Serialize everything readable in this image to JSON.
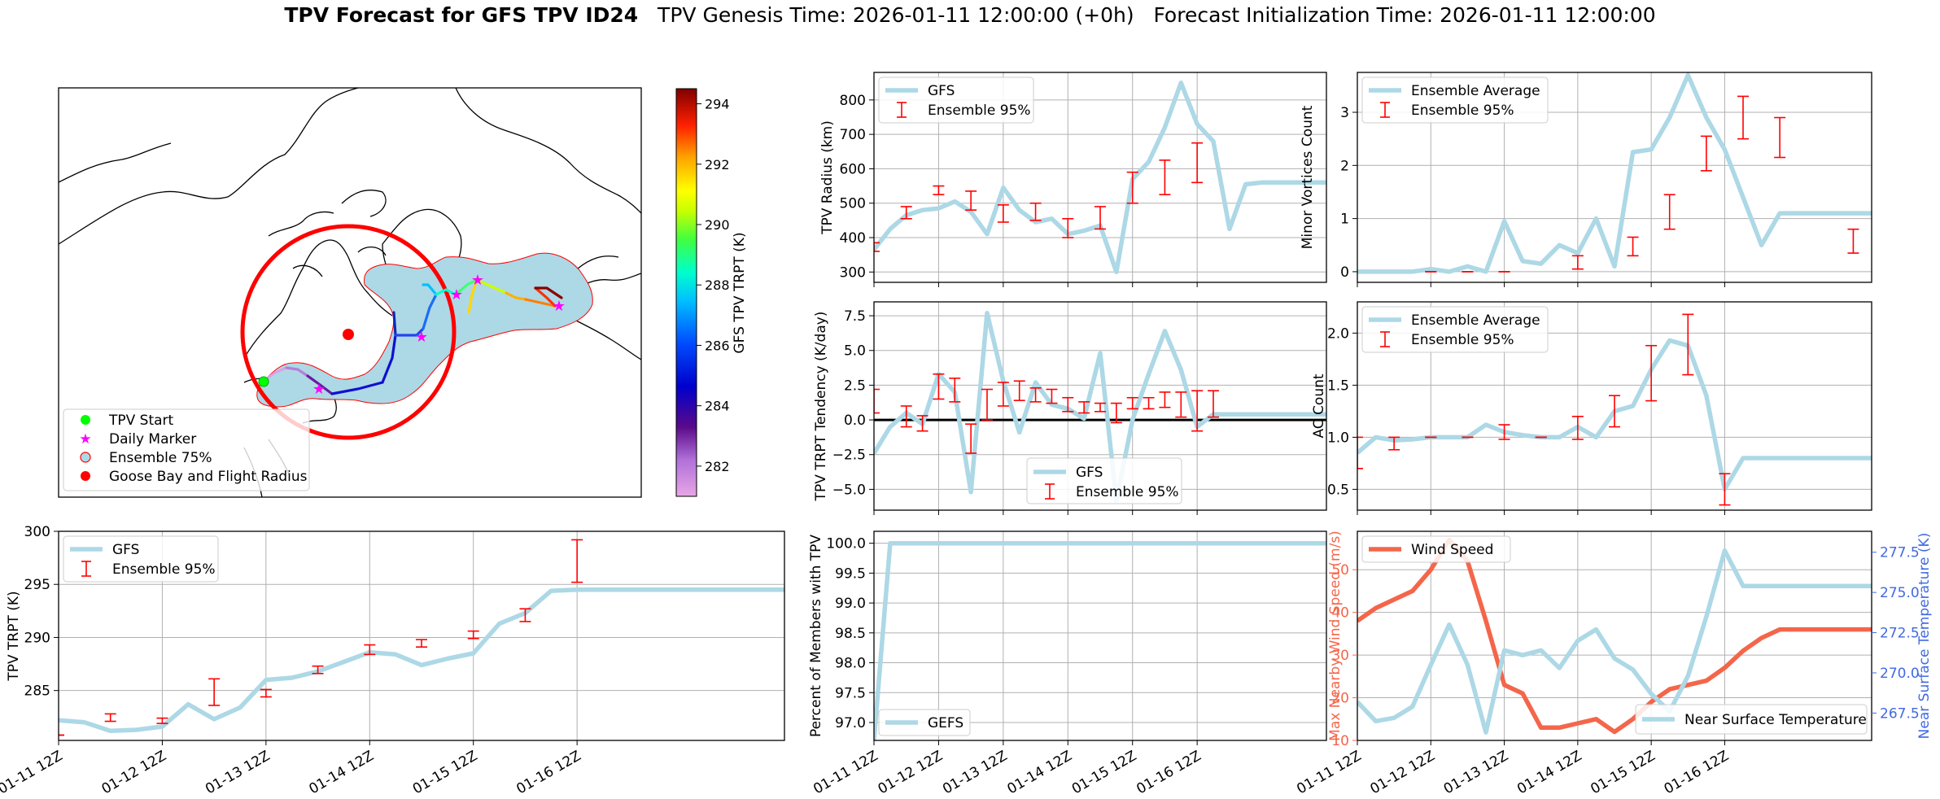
{
  "suptitle": {
    "bold": "TPV Forecast for GFS TPV ID24",
    "genesis": "TPV Genesis Time: 2026-01-11 12:00:00 (+0h)",
    "init": "Forecast Initialization Time: 2026-01-11 12:00:00"
  },
  "date_ticks": [
    "01-11 12Z",
    "01-12 12Z",
    "01-13 12Z",
    "01-14 12Z",
    "01-15 12Z",
    "01-16 12Z"
  ],
  "colors": {
    "gfs_line": "#add8e6",
    "ensemble_err": "#ff0000",
    "wind_line": "#f4664a",
    "temp_axis": "#4169e1",
    "goose_bay": "#ff0000",
    "start": "#00ff00",
    "daily": "#ff00ff"
  },
  "map": {
    "colorbar": {
      "label": "GFS TPV TRPT (K)",
      "min": 281,
      "max": 294.5,
      "ticks": [
        282,
        284,
        286,
        288,
        290,
        292,
        294
      ]
    },
    "legend": [
      "TPV Start",
      "Daily Marker",
      "Ensemble 75%",
      "Goose Bay and Flight Radius"
    ]
  },
  "chart_data": [
    {
      "id": "radius",
      "type": "line",
      "ylabel": "TPV Radius (km)",
      "ylim": [
        270,
        880
      ],
      "yticks": [
        300,
        400,
        500,
        600,
        700,
        800
      ],
      "xlim": [
        0,
        28
      ],
      "legend_labels": [
        "GFS",
        "Ensemble 95%"
      ],
      "series": [
        {
          "name": "GFS",
          "x": [
            0,
            1,
            2,
            3,
            4,
            5,
            6,
            7,
            8,
            9,
            10,
            11,
            12,
            13,
            14,
            15,
            16,
            17,
            18,
            19,
            20,
            21,
            22,
            23,
            24,
            25,
            26,
            27,
            28
          ],
          "values": [
            365,
            425,
            465,
            480,
            485,
            505,
            475,
            410,
            545,
            480,
            445,
            455,
            410,
            420,
            435,
            300,
            570,
            620,
            720,
            850,
            730,
            680,
            425,
            555,
            560,
            560,
            560,
            560,
            560
          ]
        }
      ],
      "errors": [
        {
          "x": 0,
          "lo": 360,
          "hi": 385
        },
        {
          "x": 2,
          "lo": 455,
          "hi": 490
        },
        {
          "x": 4,
          "lo": 525,
          "hi": 550
        },
        {
          "x": 6,
          "lo": 480,
          "hi": 535
        },
        {
          "x": 8,
          "lo": 445,
          "hi": 495
        },
        {
          "x": 10,
          "lo": 450,
          "hi": 500
        },
        {
          "x": 12,
          "lo": 400,
          "hi": 455
        },
        {
          "x": 14,
          "lo": 425,
          "hi": 490
        },
        {
          "x": 16,
          "lo": 500,
          "hi": 590
        },
        {
          "x": 18,
          "lo": 525,
          "hi": 625
        },
        {
          "x": 20,
          "lo": 560,
          "hi": 675
        }
      ]
    },
    {
      "id": "minor",
      "type": "line",
      "ylabel": "Minor Vortices Count",
      "ylim": [
        -0.2,
        3.75
      ],
      "yticks": [
        0,
        1,
        2,
        3
      ],
      "xlim": [
        0,
        28
      ],
      "legend_labels": [
        "Ensemble Average",
        "Ensemble 95%"
      ],
      "series": [
        {
          "name": "Ensemble Average",
          "x": [
            0,
            1,
            2,
            3,
            4,
            5,
            6,
            7,
            8,
            9,
            10,
            11,
            12,
            13,
            14,
            15,
            16,
            17,
            18,
            19,
            20,
            21,
            22,
            23,
            24,
            25,
            26,
            27,
            28
          ],
          "values": [
            0,
            0,
            0,
            0,
            0.05,
            0,
            0.1,
            0,
            0.95,
            0.2,
            0.15,
            0.5,
            0.35,
            1.0,
            0.1,
            2.25,
            2.3,
            2.9,
            3.7,
            2.9,
            2.3,
            1.4,
            0.5,
            1.1,
            1.1,
            1.1,
            1.1,
            1.1,
            1.1
          ]
        }
      ],
      "errors": [
        {
          "x": 4,
          "lo": 0,
          "hi": 0
        },
        {
          "x": 6,
          "lo": 0,
          "hi": 0
        },
        {
          "x": 8,
          "lo": 0,
          "hi": 0
        },
        {
          "x": 12,
          "lo": 0.05,
          "hi": 0.3
        },
        {
          "x": 15,
          "lo": 0.3,
          "hi": 0.65
        },
        {
          "x": 17,
          "lo": 0.8,
          "hi": 1.45
        },
        {
          "x": 19,
          "lo": 1.9,
          "hi": 2.55
        },
        {
          "x": 21,
          "lo": 2.5,
          "hi": 3.3
        },
        {
          "x": 23,
          "lo": 2.15,
          "hi": 2.9
        },
        {
          "x": 27,
          "lo": 0.35,
          "hi": 0.8
        }
      ]
    },
    {
      "id": "tendency",
      "type": "line",
      "ylabel": "TPV TRPT Tendency (K/day)",
      "ylim": [
        -6.5,
        8.5
      ],
      "yticks": [
        -5.0,
        -2.5,
        0.0,
        2.5,
        5.0,
        7.5
      ],
      "ytick_labels": [
        "−5.0",
        "−2.5",
        "0.0",
        "2.5",
        "5.0",
        "7.5"
      ],
      "xlim": [
        0,
        28
      ],
      "legend_labels": [
        "GFS",
        "Ensemble 95%"
      ],
      "series": [
        {
          "name": "GFS",
          "x": [
            0,
            1,
            2,
            3,
            4,
            5,
            6,
            7,
            8,
            9,
            10,
            11,
            12,
            13,
            14,
            15,
            16,
            17,
            18,
            19,
            20,
            21,
            22,
            23,
            24,
            25,
            26,
            27,
            28
          ],
          "values": [
            -2.4,
            -0.5,
            0.5,
            -0.3,
            3.3,
            2.0,
            -5.2,
            7.7,
            2.8,
            -0.9,
            2.7,
            1.1,
            0.8,
            0.1,
            4.8,
            -5.8,
            0.0,
            3.3,
            6.4,
            3.6,
            -0.5,
            0.4,
            0.4,
            0.4,
            0.4,
            0.4,
            0.4,
            0.4,
            0.4
          ]
        }
      ],
      "errors": [
        {
          "x": 0,
          "lo": 0.5,
          "hi": 2.2
        },
        {
          "x": 2,
          "lo": -0.5,
          "hi": 1.0
        },
        {
          "x": 3,
          "lo": -0.8,
          "hi": 0.3
        },
        {
          "x": 4,
          "lo": 1.5,
          "hi": 3.3
        },
        {
          "x": 5,
          "lo": 1.3,
          "hi": 3.0
        },
        {
          "x": 6,
          "lo": -2.4,
          "hi": -0.3
        },
        {
          "x": 7,
          "lo": 0.0,
          "hi": 2.2
        },
        {
          "x": 8,
          "lo": 1.0,
          "hi": 2.7
        },
        {
          "x": 9,
          "lo": 1.4,
          "hi": 2.8
        },
        {
          "x": 10,
          "lo": 1.3,
          "hi": 2.3
        },
        {
          "x": 11,
          "lo": 1.2,
          "hi": 2.2
        },
        {
          "x": 12,
          "lo": 0.6,
          "hi": 1.6
        },
        {
          "x": 13,
          "lo": 0.5,
          "hi": 1.3
        },
        {
          "x": 14,
          "lo": 0.6,
          "hi": 1.2
        },
        {
          "x": 15,
          "lo": -0.2,
          "hi": 1.2
        },
        {
          "x": 16,
          "lo": 0.8,
          "hi": 1.6
        },
        {
          "x": 17,
          "lo": 0.8,
          "hi": 1.6
        },
        {
          "x": 18,
          "lo": 0.9,
          "hi": 2.0
        },
        {
          "x": 19,
          "lo": 0.2,
          "hi": 2.0
        },
        {
          "x": 20,
          "lo": -0.8,
          "hi": 2.1
        },
        {
          "x": 21,
          "lo": 0.2,
          "hi": 2.1
        }
      ],
      "zero_line": true
    },
    {
      "id": "ac",
      "type": "line",
      "ylabel": "AC Count",
      "ylim": [
        0.3,
        2.3
      ],
      "yticks": [
        0.5,
        1.0,
        1.5,
        2.0
      ],
      "xlim": [
        0,
        28
      ],
      "legend_labels": [
        "Ensemble Average",
        "Ensemble 95%"
      ],
      "series": [
        {
          "name": "Ensemble Average",
          "x": [
            0,
            1,
            2,
            3,
            4,
            5,
            6,
            7,
            8,
            9,
            10,
            11,
            12,
            13,
            14,
            15,
            16,
            17,
            18,
            19,
            20,
            21,
            22,
            23,
            24,
            25,
            26,
            27,
            28
          ],
          "values": [
            0.85,
            1.0,
            0.97,
            0.98,
            1.0,
            1.0,
            1.0,
            1.12,
            1.05,
            1.02,
            1.0,
            1.0,
            1.1,
            1.0,
            1.25,
            1.3,
            1.65,
            1.93,
            1.88,
            1.4,
            0.5,
            0.8,
            0.8,
            0.8,
            0.8,
            0.8,
            0.8,
            0.8,
            0.8
          ]
        }
      ],
      "errors": [
        {
          "x": 0,
          "lo": 0.7,
          "hi": 1.0
        },
        {
          "x": 2,
          "lo": 0.88,
          "hi": 1.0
        },
        {
          "x": 4,
          "lo": 1.0,
          "hi": 1.0
        },
        {
          "x": 6,
          "lo": 1.0,
          "hi": 1.0
        },
        {
          "x": 8,
          "lo": 0.98,
          "hi": 1.12
        },
        {
          "x": 10,
          "lo": 1.0,
          "hi": 1.0
        },
        {
          "x": 12,
          "lo": 0.98,
          "hi": 1.2
        },
        {
          "x": 14,
          "lo": 1.1,
          "hi": 1.4
        },
        {
          "x": 16,
          "lo": 1.35,
          "hi": 1.88
        },
        {
          "x": 18,
          "lo": 1.6,
          "hi": 2.18
        },
        {
          "x": 20,
          "lo": 0.35,
          "hi": 0.65
        }
      ]
    },
    {
      "id": "trpt",
      "type": "line",
      "ylabel": "TPV TRPT (K)",
      "ylim": [
        280.3,
        300
      ],
      "yticks": [
        285,
        290,
        295,
        300
      ],
      "xlim": [
        0,
        28
      ],
      "legend_labels": [
        "GFS",
        "Ensemble 95%"
      ],
      "series": [
        {
          "name": "GFS",
          "x": [
            0,
            1,
            2,
            3,
            4,
            5,
            6,
            7,
            8,
            9,
            10,
            11,
            12,
            13,
            14,
            15,
            16,
            17,
            18,
            19,
            20,
            21,
            22,
            23,
            24,
            25,
            26,
            27,
            28
          ],
          "values": [
            282.2,
            282.0,
            281.2,
            281.3,
            281.6,
            283.7,
            282.3,
            283.4,
            286.0,
            286.2,
            286.8,
            287.7,
            288.6,
            288.4,
            287.4,
            288.0,
            288.5,
            291.3,
            292.3,
            294.4,
            294.5,
            294.5,
            294.5,
            294.5,
            294.5,
            294.5,
            294.5,
            294.5,
            294.5
          ]
        }
      ],
      "errors": [
        {
          "x": 0,
          "lo": 280.8,
          "hi": 280.8
        },
        {
          "x": 2,
          "lo": 282.1,
          "hi": 282.8
        },
        {
          "x": 4,
          "lo": 281.9,
          "hi": 282.4
        },
        {
          "x": 6,
          "lo": 283.6,
          "hi": 286.1
        },
        {
          "x": 8,
          "lo": 284.4,
          "hi": 285.1
        },
        {
          "x": 10,
          "lo": 286.6,
          "hi": 287.3
        },
        {
          "x": 12,
          "lo": 288.4,
          "hi": 289.3
        },
        {
          "x": 14,
          "lo": 289.1,
          "hi": 289.8
        },
        {
          "x": 16,
          "lo": 289.9,
          "hi": 290.6
        },
        {
          "x": 18,
          "lo": 291.5,
          "hi": 292.7
        },
        {
          "x": 20,
          "lo": 295.2,
          "hi": 299.2
        }
      ]
    },
    {
      "id": "members",
      "type": "line",
      "ylabel": "Percent of Members with TPV",
      "ylim": [
        96.7,
        100.2
      ],
      "yticks": [
        97.0,
        97.5,
        98.0,
        98.5,
        99.0,
        99.5,
        100.0
      ],
      "xlim": [
        0,
        28
      ],
      "legend_labels": [
        "GEFS"
      ],
      "series": [
        {
          "name": "GEFS",
          "x": [
            0,
            1,
            2,
            3,
            4,
            5,
            6,
            7,
            8,
            9,
            10,
            11,
            12,
            13,
            14,
            15,
            16,
            17,
            18,
            19,
            20,
            21,
            22,
            23,
            24,
            25,
            26,
            27,
            28
          ],
          "values": [
            96.7,
            100,
            100,
            100,
            100,
            100,
            100,
            100,
            100,
            100,
            100,
            100,
            100,
            100,
            100,
            100,
            100,
            100,
            100,
            100,
            100,
            100,
            100,
            100,
            100,
            100,
            100,
            100,
            100
          ]
        }
      ]
    },
    {
      "id": "wind",
      "type": "line",
      "ylabel": "Max Nearby Wind Speed (m/s)",
      "ylabel_right": "Near Surface Temperature (K)",
      "ylim": [
        10,
        59
      ],
      "yticks": [
        10,
        20,
        30,
        40,
        50
      ],
      "ylim_right": [
        265.8,
        278.8
      ],
      "yticks_right": [
        267.5,
        270.0,
        272.5,
        275.0,
        277.5
      ],
      "xlim": [
        0,
        28
      ],
      "legend_labels": [
        "Wind Speed",
        "Near Surface Temperature"
      ],
      "series": [
        {
          "name": "Wind Speed",
          "x": [
            0,
            1,
            2,
            3,
            4,
            5,
            6,
            7,
            8,
            9,
            10,
            11,
            12,
            13,
            14,
            15,
            16,
            17,
            18,
            19,
            20,
            21,
            22,
            23,
            24,
            25,
            26,
            27,
            28
          ],
          "values": [
            38,
            41,
            43,
            45,
            50,
            57,
            52,
            38,
            23,
            21,
            13,
            13,
            14,
            15,
            12,
            15,
            19,
            22,
            23,
            24,
            27,
            31,
            34,
            36,
            36,
            36,
            36,
            36,
            36
          ]
        },
        {
          "name": "Near Surface Temperature",
          "axis": "right",
          "x": [
            0,
            1,
            2,
            3,
            4,
            5,
            6,
            7,
            8,
            9,
            10,
            11,
            12,
            13,
            14,
            15,
            16,
            17,
            18,
            19,
            20,
            21,
            22,
            23,
            24,
            25,
            26,
            27,
            28
          ],
          "values": [
            268.2,
            267.0,
            267.2,
            267.9,
            270.5,
            273.0,
            270.5,
            266.3,
            271.4,
            271.1,
            271.4,
            270.3,
            272.0,
            272.7,
            270.9,
            270.2,
            268.7,
            267.6,
            269.8,
            273.5,
            277.6,
            275.4,
            275.4,
            275.4,
            275.4,
            275.4,
            275.4,
            275.4,
            275.4
          ]
        }
      ]
    }
  ]
}
